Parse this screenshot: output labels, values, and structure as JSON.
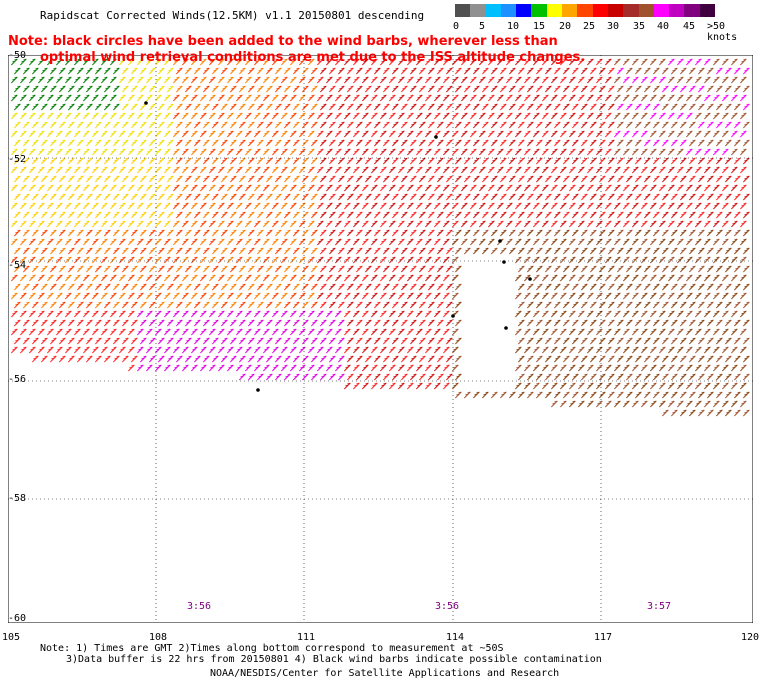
{
  "title": "Rapidscat Corrected Winds(12.5KM) v1.1 20150801 descending",
  "note_line1": "Note: black circles have been added to the wind barbs, wherever less than",
  "note_line2": "optimal wind retrieval conditions are met due to the ISS altitude changes.",
  "colorbar": {
    "labels": [
      "0",
      "5",
      "10",
      "15",
      "20",
      "25",
      "30",
      "35",
      "40",
      "45",
      ">50 knots"
    ],
    "colors": [
      "#505050",
      "#909090",
      "#00bfff",
      "#1e90ff",
      "#0000ff",
      "#00c000",
      "#ffff00",
      "#ffa500",
      "#ff4500",
      "#ff0000",
      "#c80000",
      "#a52a2a",
      "#a0522d",
      "#ff00ff",
      "#c000c0",
      "#800080",
      "#400040"
    ]
  },
  "axes": {
    "x_ticks": [
      "105",
      "108",
      "111",
      "114",
      "117",
      "120"
    ],
    "y_ticks": [
      "-50",
      "-52",
      "-54",
      "-56",
      "-58",
      "-60"
    ]
  },
  "times": [
    "3:56",
    "3:56",
    "3:57"
  ],
  "footnote_line1": "Note: 1) Times are GMT 2)Times along bottom correspond to measurement at ~50S",
  "footnote_line2": "3)Data buffer is 22 hrs from 20150801 4) Black wind barbs indicate possible contamination",
  "credit": "NOAA/NESDIS/Center for Satellite Applications and Research"
}
